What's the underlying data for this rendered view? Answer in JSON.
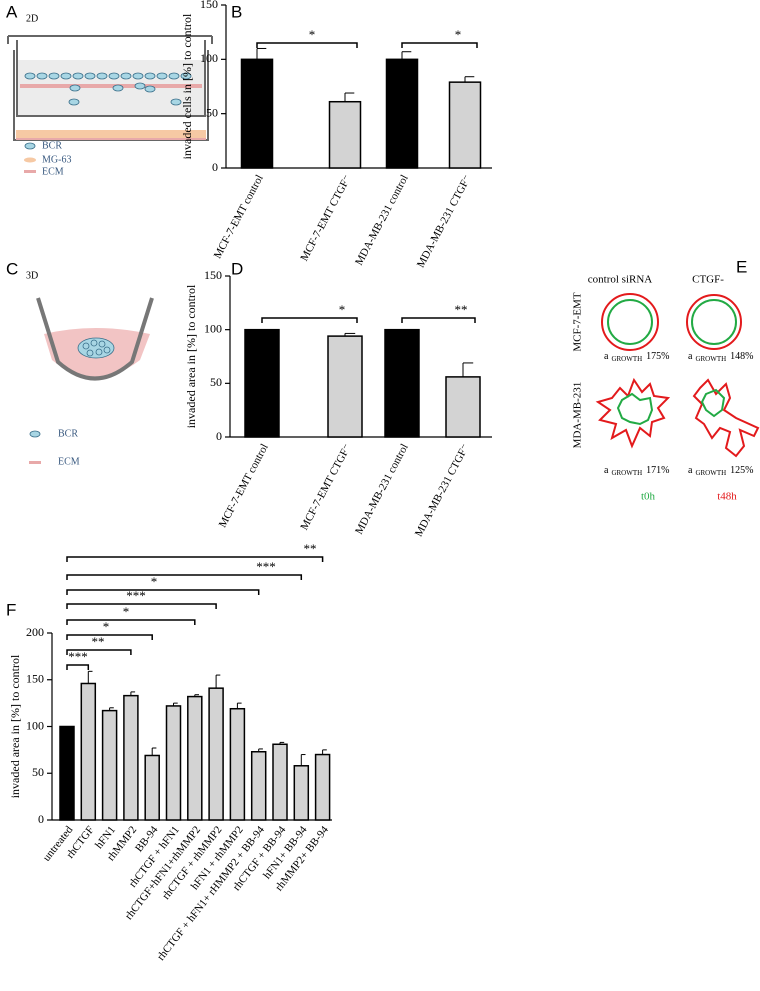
{
  "panel_labels": [
    "A",
    "B",
    "C",
    "D",
    "E",
    "F"
  ],
  "panel_a": {
    "subtitle": "2D",
    "legend": [
      "BCR",
      "MG-63",
      "ECM"
    ]
  },
  "panel_c": {
    "subtitle": "3D",
    "legend": [
      "BCR",
      "ECM"
    ]
  },
  "panel_e": {
    "columns": [
      "control  siRNA",
      "CTGF-"
    ],
    "rows": [
      "MCF-7-EMT",
      "MDA-MB-231"
    ],
    "growth_prefix": "a",
    "growth_sub": "GROWTH",
    "growth": [
      "175%",
      "148%",
      "171%",
      "125%"
    ],
    "timepoints": [
      "t0h",
      "t48h"
    ]
  },
  "chart_data": [
    {
      "type": "bar",
      "ylabel": "invaded cells in [%] to control",
      "categories": [
        "MCF-7-EMT control",
        "MCF-7-EMT CTGF⁻",
        "MDA-MB-231 control",
        "MDA-MB-231 CTGF⁻"
      ],
      "series": [
        {
          "values": [
            100,
            61,
            100,
            79
          ],
          "errors": [
            10,
            8,
            7,
            5
          ],
          "colors": [
            "#000000",
            "#d3d3d3",
            "#000000",
            "#d3d3d3"
          ]
        }
      ],
      "ylim": [
        0,
        150
      ],
      "yticks": [
        0,
        50,
        100,
        150
      ],
      "significance": [
        "*",
        "*"
      ]
    },
    {
      "type": "bar",
      "ylabel": "invaded area in [%] to control",
      "categories": [
        "MCF-7-EMT control",
        "MCF-7-EMT CTGF⁻",
        "MDA-MB-231 control",
        "MDA-MB-231 CTGF⁻"
      ],
      "series": [
        {
          "values": [
            100,
            94,
            100,
            56
          ],
          "errors": [
            0,
            2.5,
            0,
            13
          ],
          "colors": [
            "#000000",
            "#d3d3d3",
            "#000000",
            "#d3d3d3"
          ]
        }
      ],
      "ylim": [
        0,
        150
      ],
      "yticks": [
        0,
        50,
        100,
        150
      ],
      "significance": [
        "*",
        "**"
      ]
    },
    {
      "type": "bar",
      "ylabel": "invaded area in [%] to control",
      "categories": [
        "untreated",
        "rhCTGF",
        "hFN1",
        "rhMMP2",
        "BB-94",
        "rhCTGF + hFN1",
        "rhCTGF+hFN1+rhMMP2",
        "rhCTGF + rhMMP2",
        "hFN1 + rhMMP2",
        "rhCTGF + hFN1+ rHMMP2 + BB-94",
        "rhCTGF + BB-94",
        "hFN1+ BB-94",
        "rhMMP2+ BB-94"
      ],
      "series": [
        {
          "values": [
            100,
            146,
            117,
            133,
            69,
            122,
            132,
            141,
            119,
            73,
            81,
            58,
            70
          ],
          "errors": [
            0,
            13,
            3,
            4,
            8,
            3,
            2,
            14,
            6,
            3,
            2,
            12,
            5
          ],
          "colors": [
            "#000000",
            "#d3d3d3",
            "#d3d3d3",
            "#d3d3d3",
            "#d3d3d3",
            "#d3d3d3",
            "#d3d3d3",
            "#d3d3d3",
            "#d3d3d3",
            "#d3d3d3",
            "#d3d3d3",
            "#d3d3d3",
            "#d3d3d3"
          ]
        }
      ],
      "ylim": [
        0,
        200
      ],
      "yticks": [
        0,
        50,
        100,
        150,
        200
      ],
      "significance": [
        "**",
        "***",
        "*",
        "***",
        "*",
        "*",
        "**",
        "***"
      ]
    }
  ]
}
